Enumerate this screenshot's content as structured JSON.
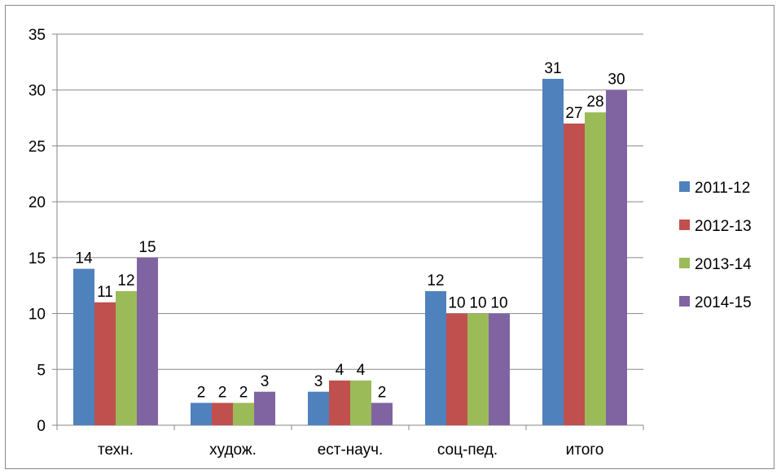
{
  "chart_data": {
    "type": "bar",
    "categories": [
      "техн.",
      "худож.",
      "ест-науч.",
      "соц-пед.",
      "итого"
    ],
    "series": [
      {
        "name": "2011-12",
        "color": "#4f81bd",
        "values": [
          14,
          2,
          3,
          12,
          31
        ]
      },
      {
        "name": "2012-13",
        "color": "#c0504d",
        "values": [
          11,
          2,
          4,
          10,
          27
        ]
      },
      {
        "name": "2013-14",
        "color": "#9bbb59",
        "values": [
          12,
          2,
          4,
          10,
          28
        ]
      },
      {
        "name": "2014-15",
        "color": "#8064a2",
        "values": [
          15,
          3,
          2,
          10,
          30
        ]
      }
    ],
    "ylim": [
      0,
      35
    ],
    "yticks": [
      0,
      5,
      10,
      15,
      20,
      25,
      30,
      35
    ],
    "grid": true,
    "legend_position": "right",
    "data_labels": true
  }
}
